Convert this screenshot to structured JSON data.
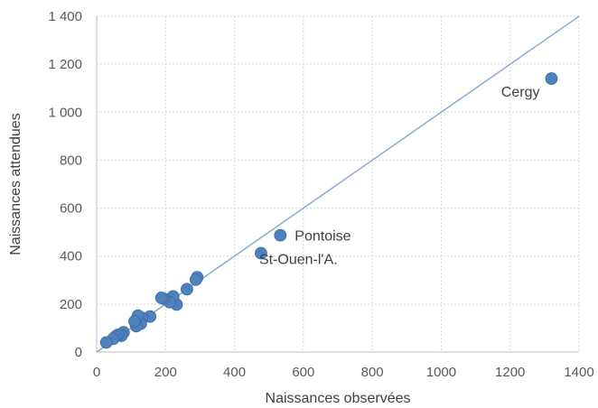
{
  "chart_data": {
    "type": "scatter",
    "title": "",
    "xlabel": "Naissances observées",
    "ylabel": "Naissances attendues",
    "xlim": [
      0,
      1400
    ],
    "ylim": [
      0,
      1400
    ],
    "x_ticks": [
      0,
      200,
      400,
      600,
      800,
      1000,
      1200,
      1400
    ],
    "x_tick_labels": [
      "0",
      "200",
      "400",
      "600",
      "800",
      "1000",
      "1200",
      "1400"
    ],
    "y_ticks": [
      0,
      200,
      400,
      600,
      800,
      1000,
      1200,
      1400
    ],
    "y_tick_labels": [
      "0",
      "200",
      "400",
      "600",
      "800",
      "1 000",
      "1 200",
      "1 400"
    ],
    "grid": "dotted",
    "legend": "none",
    "colors": {
      "points": "#4f81bd",
      "point_edge": "#3a6aa3",
      "reference_line": "#8eaad2",
      "axis": "#bfbfbf",
      "grid": "#d9d9d9"
    },
    "reference_line": {
      "from": [
        0,
        0
      ],
      "to": [
        1400,
        1400
      ]
    },
    "points": [
      {
        "x": 1320,
        "y": 1140,
        "label": "Cergy"
      },
      {
        "x": 533,
        "y": 487,
        "label": "Pontoise"
      },
      {
        "x": 477,
        "y": 412,
        "label": "St-Ouen-l'A."
      },
      {
        "x": 292,
        "y": 312,
        "label": ""
      },
      {
        "x": 288,
        "y": 302,
        "label": ""
      },
      {
        "x": 262,
        "y": 262,
        "label": ""
      },
      {
        "x": 232,
        "y": 198,
        "label": ""
      },
      {
        "x": 222,
        "y": 232,
        "label": ""
      },
      {
        "x": 212,
        "y": 208,
        "label": ""
      },
      {
        "x": 195,
        "y": 222,
        "label": ""
      },
      {
        "x": 188,
        "y": 226,
        "label": ""
      },
      {
        "x": 155,
        "y": 148,
        "label": ""
      },
      {
        "x": 132,
        "y": 142,
        "label": ""
      },
      {
        "x": 128,
        "y": 118,
        "label": ""
      },
      {
        "x": 120,
        "y": 152,
        "label": ""
      },
      {
        "x": 115,
        "y": 108,
        "label": ""
      },
      {
        "x": 110,
        "y": 128,
        "label": ""
      },
      {
        "x": 78,
        "y": 82,
        "label": ""
      },
      {
        "x": 72,
        "y": 68,
        "label": ""
      },
      {
        "x": 62,
        "y": 72,
        "label": ""
      },
      {
        "x": 55,
        "y": 65,
        "label": ""
      },
      {
        "x": 48,
        "y": 55,
        "label": ""
      },
      {
        "x": 28,
        "y": 40,
        "label": ""
      }
    ]
  }
}
